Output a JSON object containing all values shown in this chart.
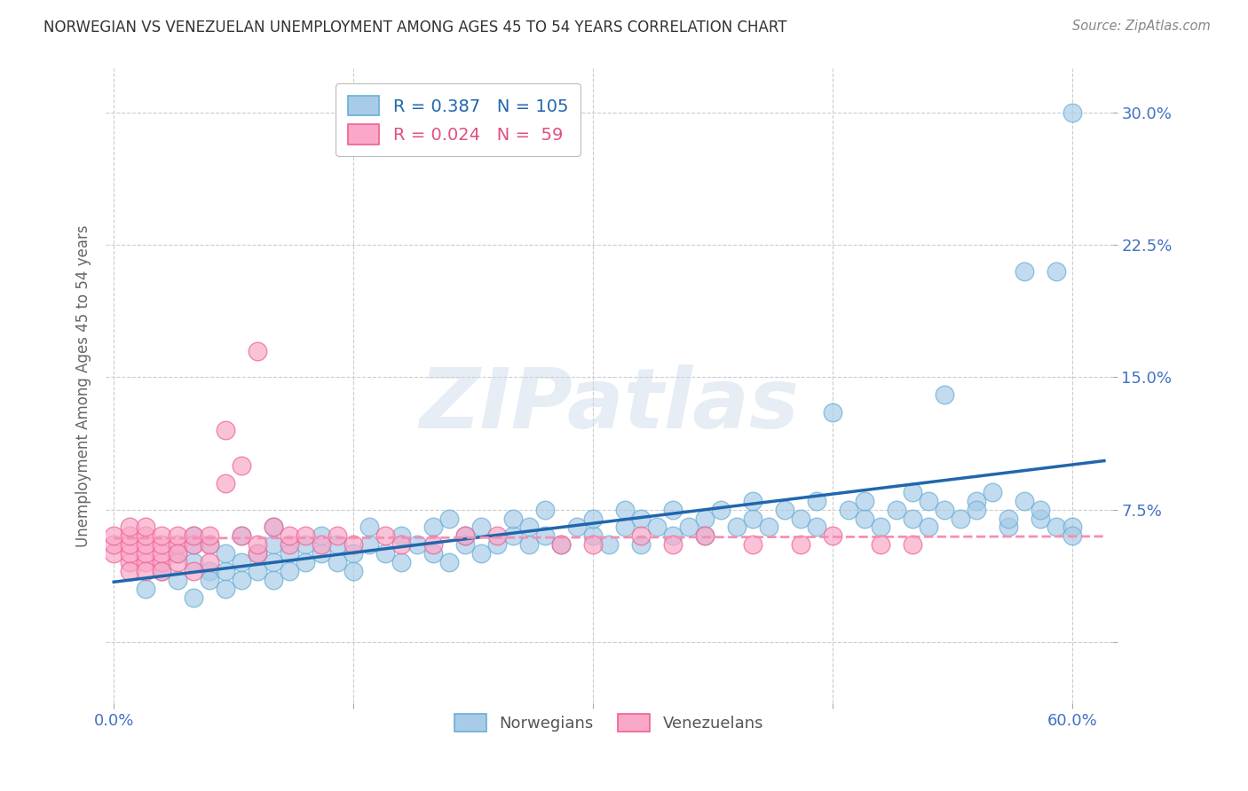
{
  "title": "NORWEGIAN VS VENEZUELAN UNEMPLOYMENT AMONG AGES 45 TO 54 YEARS CORRELATION CHART",
  "source": "Source: ZipAtlas.com",
  "ylabel": "Unemployment Among Ages 45 to 54 years",
  "xlim": [
    -0.005,
    0.625
  ],
  "ylim": [
    -0.035,
    0.325
  ],
  "yticks": [
    0.0,
    0.075,
    0.15,
    0.225,
    0.3
  ],
  "xticks": [
    0.0,
    0.15,
    0.3,
    0.45,
    0.6
  ],
  "watermark_text": "ZIPatlas",
  "nor_R": 0.387,
  "nor_N": 105,
  "ven_R": 0.024,
  "ven_N": 59,
  "background_color": "#ffffff",
  "grid_color": "#cccccc",
  "nor_color": "#a8cce8",
  "ven_color": "#f9a8c9",
  "nor_edge_color": "#6aaed6",
  "ven_edge_color": "#f06090",
  "nor_line_color": "#2166ac",
  "ven_line_color": "#f48fb1",
  "title_color": "#333333",
  "axis_label_color": "#666666",
  "tick_label_color": "#4472c4",
  "source_color": "#888888",
  "nor_legend_color": "#2166ac",
  "ven_legend_color": "#e05080",
  "legend_box_color": "#dddddd",
  "nor_x": [
    0.02,
    0.03,
    0.04,
    0.04,
    0.05,
    0.05,
    0.05,
    0.05,
    0.06,
    0.06,
    0.06,
    0.07,
    0.07,
    0.07,
    0.08,
    0.08,
    0.08,
    0.09,
    0.09,
    0.1,
    0.1,
    0.1,
    0.1,
    0.11,
    0.11,
    0.12,
    0.12,
    0.13,
    0.13,
    0.14,
    0.14,
    0.15,
    0.15,
    0.16,
    0.16,
    0.17,
    0.18,
    0.18,
    0.19,
    0.2,
    0.2,
    0.21,
    0.21,
    0.22,
    0.22,
    0.23,
    0.23,
    0.24,
    0.25,
    0.25,
    0.26,
    0.26,
    0.27,
    0.27,
    0.28,
    0.29,
    0.3,
    0.3,
    0.31,
    0.32,
    0.32,
    0.33,
    0.33,
    0.34,
    0.35,
    0.35,
    0.36,
    0.37,
    0.37,
    0.38,
    0.39,
    0.4,
    0.4,
    0.41,
    0.42,
    0.43,
    0.44,
    0.44,
    0.45,
    0.46,
    0.47,
    0.47,
    0.48,
    0.49,
    0.5,
    0.5,
    0.51,
    0.51,
    0.52,
    0.52,
    0.53,
    0.54,
    0.54,
    0.55,
    0.56,
    0.56,
    0.57,
    0.57,
    0.58,
    0.58,
    0.59,
    0.59,
    0.6,
    0.6,
    0.6
  ],
  "nor_y": [
    0.03,
    0.04,
    0.05,
    0.035,
    0.045,
    0.055,
    0.025,
    0.06,
    0.04,
    0.035,
    0.055,
    0.04,
    0.05,
    0.03,
    0.045,
    0.06,
    0.035,
    0.05,
    0.04,
    0.055,
    0.045,
    0.035,
    0.065,
    0.05,
    0.04,
    0.055,
    0.045,
    0.05,
    0.06,
    0.045,
    0.055,
    0.05,
    0.04,
    0.055,
    0.065,
    0.05,
    0.045,
    0.06,
    0.055,
    0.05,
    0.065,
    0.045,
    0.07,
    0.055,
    0.06,
    0.05,
    0.065,
    0.055,
    0.06,
    0.07,
    0.055,
    0.065,
    0.06,
    0.075,
    0.055,
    0.065,
    0.06,
    0.07,
    0.055,
    0.065,
    0.075,
    0.055,
    0.07,
    0.065,
    0.06,
    0.075,
    0.065,
    0.07,
    0.06,
    0.075,
    0.065,
    0.07,
    0.08,
    0.065,
    0.075,
    0.07,
    0.065,
    0.08,
    0.13,
    0.075,
    0.07,
    0.08,
    0.065,
    0.075,
    0.07,
    0.085,
    0.065,
    0.08,
    0.075,
    0.14,
    0.07,
    0.08,
    0.075,
    0.085,
    0.065,
    0.07,
    0.08,
    0.21,
    0.07,
    0.075,
    0.21,
    0.065,
    0.3,
    0.065,
    0.06
  ],
  "ven_x": [
    0.0,
    0.0,
    0.0,
    0.01,
    0.01,
    0.01,
    0.01,
    0.01,
    0.01,
    0.02,
    0.02,
    0.02,
    0.02,
    0.02,
    0.02,
    0.03,
    0.03,
    0.03,
    0.03,
    0.03,
    0.04,
    0.04,
    0.04,
    0.04,
    0.05,
    0.05,
    0.05,
    0.06,
    0.06,
    0.06,
    0.07,
    0.07,
    0.08,
    0.08,
    0.09,
    0.09,
    0.09,
    0.1,
    0.11,
    0.11,
    0.12,
    0.13,
    0.14,
    0.15,
    0.17,
    0.18,
    0.2,
    0.22,
    0.24,
    0.28,
    0.3,
    0.33,
    0.35,
    0.37,
    0.4,
    0.43,
    0.45,
    0.48,
    0.5
  ],
  "ven_y": [
    0.05,
    0.055,
    0.06,
    0.045,
    0.05,
    0.055,
    0.06,
    0.04,
    0.065,
    0.045,
    0.05,
    0.055,
    0.06,
    0.04,
    0.065,
    0.045,
    0.05,
    0.055,
    0.06,
    0.04,
    0.055,
    0.06,
    0.045,
    0.05,
    0.055,
    0.06,
    0.04,
    0.055,
    0.06,
    0.045,
    0.09,
    0.12,
    0.06,
    0.1,
    0.05,
    0.055,
    0.165,
    0.065,
    0.055,
    0.06,
    0.06,
    0.055,
    0.06,
    0.055,
    0.06,
    0.055,
    0.055,
    0.06,
    0.06,
    0.055,
    0.055,
    0.06,
    0.055,
    0.06,
    0.055,
    0.055,
    0.06,
    0.055,
    0.055
  ]
}
